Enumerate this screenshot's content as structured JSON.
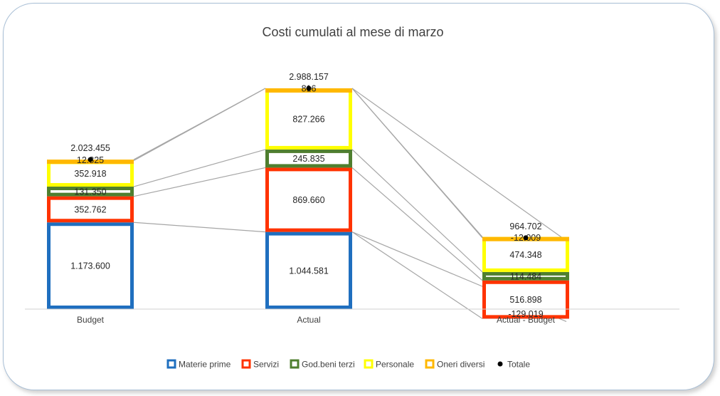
{
  "chart_data": {
    "type": "bar",
    "subtype": "stacked-waterfall",
    "title": "Costi cumulati al mese di marzo",
    "categories": [
      "Budget",
      "Actual",
      "Actual - Budget"
    ],
    "series": [
      {
        "name": "Materie prime",
        "color": "#1f6fbf",
        "values": [
          1173600,
          1044581,
          -129019
        ],
        "labels": [
          "1.173.600",
          "1.044.581",
          "-129.019"
        ]
      },
      {
        "name": "Servizi",
        "color": "#ff3300",
        "values": [
          352762,
          869660,
          516898
        ],
        "labels": [
          "352.762",
          "869.660",
          "516.898"
        ]
      },
      {
        "name": "God.beni terzi",
        "color": "#4f7f2f",
        "values": [
          131350,
          245835,
          114484
        ],
        "labels": [
          "131.350",
          "245.835",
          "114.484"
        ]
      },
      {
        "name": "Personale",
        "color": "#ffff00",
        "values": [
          352918,
          827266,
          474348
        ],
        "labels": [
          "352.918",
          "827.266",
          "474.348"
        ]
      },
      {
        "name": "Oneri diversi",
        "color": "#ffb800",
        "values": [
          12825,
          816,
          -12009
        ],
        "labels": [
          "12.825",
          "816",
          "-12.009"
        ]
      }
    ],
    "totals": {
      "name": "Totale",
      "values": [
        2023455,
        2988157,
        964702
      ],
      "labels": [
        "2.023.455",
        "2.988.157",
        "964.702"
      ]
    },
    "legend_position": "bottom",
    "grid": false,
    "connector_color": "#a6a6a6"
  }
}
